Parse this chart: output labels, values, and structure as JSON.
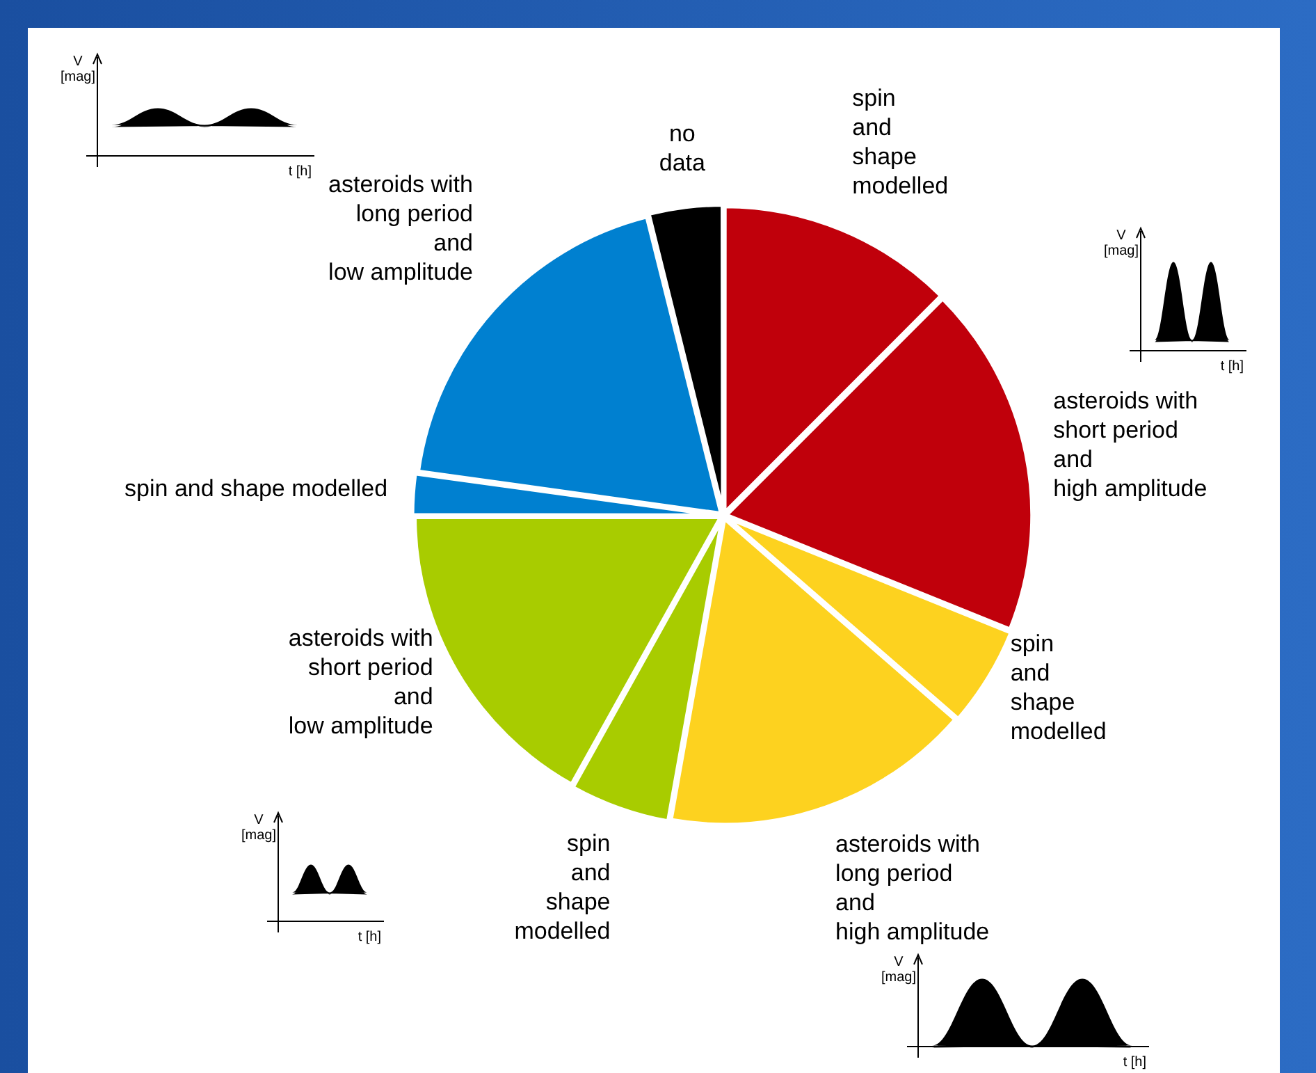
{
  "chart_data": {
    "type": "pie",
    "categories": [
      "spin\nand\nshape\nmodelled",
      "asteroids with\nshort period\nand\nhigh amplitude",
      "spin\nand\nshape\nmodelled",
      "asteroids with\nlong period\nand\nhigh amplitude",
      "spin\nand\nshape\nmodelled",
      "asteroids with\nshort period\nand\nlow amplitude",
      "spin and shape modelled",
      "asteroids with\nlong period\nand\nlow amplitude",
      "no\ndata"
    ],
    "values": [
      12.5,
      18.6,
      5.3,
      16.4,
      5.3,
      16.9,
      2.2,
      18.9,
      3.9
    ],
    "colors": [
      "#c0000b",
      "#c0000b",
      "#fdd21f",
      "#fdd21f",
      "#a8cc00",
      "#a8cc00",
      "#0080d0",
      "#0080d0",
      "#000000"
    ],
    "annotations": [
      "V [mag]",
      "t [h]"
    ],
    "legend": false
  }
}
